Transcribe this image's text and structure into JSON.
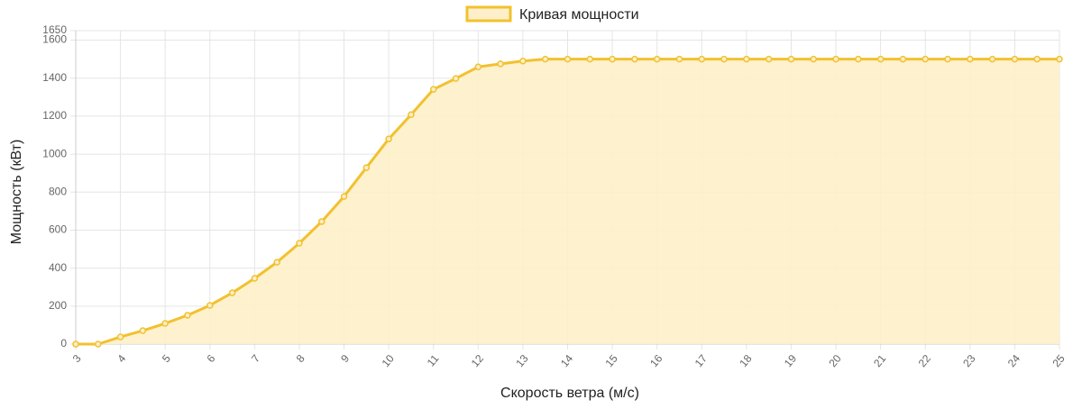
{
  "chart_data": {
    "type": "line",
    "x_label": "Скорость ветра (м/с)",
    "y_label": "Мощность (кВт)",
    "x": [
      3,
      3.5,
      4,
      4.5,
      5,
      5.5,
      6,
      6.5,
      7,
      7.5,
      8,
      8.5,
      9,
      9.5,
      10,
      10.5,
      11,
      11.5,
      12,
      12.5,
      13,
      13.5,
      14,
      14.5,
      15,
      15.5,
      16,
      16.5,
      17,
      17.5,
      18,
      18.5,
      19,
      19.5,
      20,
      20.5,
      21,
      21.5,
      22,
      22.5,
      23,
      23.5,
      24,
      24.5,
      25
    ],
    "series": [
      {
        "name": "Кривая мощности",
        "color": "#f2c12e",
        "fill": "#fdefc9",
        "values": [
          0,
          0,
          38,
          71,
          109,
          152,
          204,
          270,
          346,
          431,
          531,
          645,
          777,
          929,
          1080,
          1208,
          1341,
          1398,
          1459,
          1475,
          1490,
          1500,
          1500,
          1500,
          1500,
          1500,
          1500,
          1500,
          1500,
          1500,
          1500,
          1500,
          1500,
          1500,
          1500,
          1500,
          1500,
          1500,
          1500,
          1500,
          1500,
          1500,
          1500,
          1500,
          1500
        ]
      }
    ],
    "xlim": [
      3,
      25
    ],
    "xticks": [
      3,
      4,
      5,
      6,
      7,
      8,
      9,
      10,
      11,
      12,
      13,
      14,
      15,
      16,
      17,
      18,
      19,
      20,
      21,
      22,
      23,
      24,
      25
    ],
    "ylim": [
      0,
      1650
    ],
    "yticks": [
      0,
      200,
      400,
      600,
      800,
      1000,
      1200,
      1400,
      1600,
      1650
    ],
    "grid": true,
    "legend": "top"
  }
}
